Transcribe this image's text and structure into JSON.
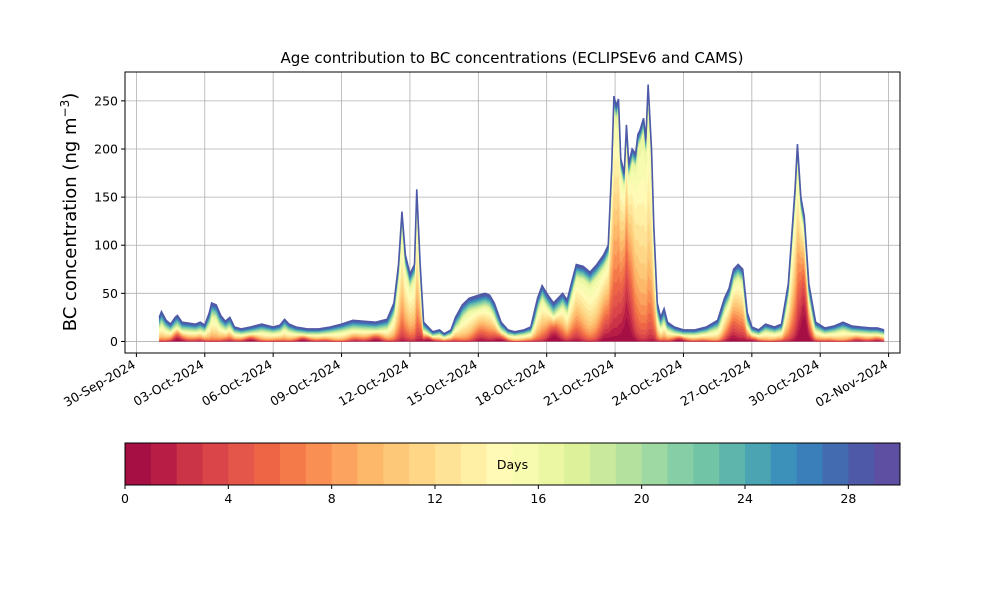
{
  "chart_data": {
    "type": "area",
    "title": "Age contribution to BC concentrations (ECLIPSEv6 and CAMS)",
    "ylabel_main": "BC concentration (ng m",
    "ylabel_unit_exp": "−3",
    "ylabel_close": ")",
    "xlabel": "",
    "ylim": [
      -12,
      280
    ],
    "yticks": [
      0,
      50,
      100,
      150,
      200,
      250
    ],
    "xlim": [
      -0.5,
      33.5
    ],
    "x_start": "30-Sep-2024",
    "xticks": [
      {
        "x": 0,
        "label": "30-Sep-2024"
      },
      {
        "x": 3,
        "label": "03-Oct-2024"
      },
      {
        "x": 6,
        "label": "06-Oct-2024"
      },
      {
        "x": 9,
        "label": "09-Oct-2024"
      },
      {
        "x": 12,
        "label": "12-Oct-2024"
      },
      {
        "x": 15,
        "label": "15-Oct-2024"
      },
      {
        "x": 18,
        "label": "18-Oct-2024"
      },
      {
        "x": 21,
        "label": "21-Oct-2024"
      },
      {
        "x": 24,
        "label": "24-Oct-2024"
      },
      {
        "x": 27,
        "label": "27-Oct-2024"
      },
      {
        "x": 30,
        "label": "30-Oct-2024"
      },
      {
        "x": 33,
        "label": "02-Nov-2024"
      }
    ],
    "grid": true,
    "total_series": [
      [
        1.0,
        25
      ],
      [
        1.1,
        31
      ],
      [
        1.3,
        22
      ],
      [
        1.5,
        18
      ],
      [
        1.7,
        25
      ],
      [
        1.8,
        27
      ],
      [
        2.0,
        20
      ],
      [
        2.3,
        19
      ],
      [
        2.6,
        18
      ],
      [
        2.8,
        20
      ],
      [
        3.0,
        17
      ],
      [
        3.2,
        30
      ],
      [
        3.3,
        40
      ],
      [
        3.5,
        38
      ],
      [
        3.7,
        27
      ],
      [
        3.9,
        21
      ],
      [
        4.1,
        25
      ],
      [
        4.3,
        15
      ],
      [
        4.6,
        13
      ],
      [
        5.0,
        15
      ],
      [
        5.5,
        18
      ],
      [
        6.0,
        15
      ],
      [
        6.3,
        17
      ],
      [
        6.5,
        23
      ],
      [
        6.7,
        18
      ],
      [
        7.0,
        15
      ],
      [
        7.5,
        13
      ],
      [
        8.0,
        13
      ],
      [
        8.5,
        15
      ],
      [
        9.0,
        18
      ],
      [
        9.5,
        22
      ],
      [
        10.0,
        21
      ],
      [
        10.5,
        20
      ],
      [
        11.0,
        23
      ],
      [
        11.3,
        40
      ],
      [
        11.5,
        80
      ],
      [
        11.65,
        135
      ],
      [
        11.8,
        90
      ],
      [
        12.0,
        70
      ],
      [
        12.2,
        80
      ],
      [
        12.3,
        158
      ],
      [
        12.45,
        80
      ],
      [
        12.6,
        20
      ],
      [
        13.0,
        10
      ],
      [
        13.3,
        12
      ],
      [
        13.5,
        8
      ],
      [
        13.8,
        12
      ],
      [
        14.0,
        25
      ],
      [
        14.3,
        38
      ],
      [
        14.6,
        45
      ],
      [
        15.0,
        48
      ],
      [
        15.3,
        50
      ],
      [
        15.5,
        48
      ],
      [
        15.7,
        40
      ],
      [
        16.0,
        20
      ],
      [
        16.3,
        12
      ],
      [
        16.6,
        10
      ],
      [
        17.0,
        12
      ],
      [
        17.3,
        15
      ],
      [
        17.6,
        45
      ],
      [
        17.8,
        58
      ],
      [
        18.0,
        50
      ],
      [
        18.3,
        40
      ],
      [
        18.5,
        45
      ],
      [
        18.7,
        50
      ],
      [
        18.9,
        43
      ],
      [
        19.1,
        62
      ],
      [
        19.3,
        80
      ],
      [
        19.6,
        78
      ],
      [
        19.9,
        72
      ],
      [
        20.2,
        80
      ],
      [
        20.5,
        90
      ],
      [
        20.7,
        100
      ],
      [
        20.85,
        180
      ],
      [
        20.95,
        255
      ],
      [
        21.05,
        245
      ],
      [
        21.15,
        252
      ],
      [
        21.25,
        190
      ],
      [
        21.4,
        175
      ],
      [
        21.5,
        225
      ],
      [
        21.6,
        185
      ],
      [
        21.75,
        200
      ],
      [
        21.9,
        195
      ],
      [
        22.0,
        215
      ],
      [
        22.1,
        220
      ],
      [
        22.25,
        232
      ],
      [
        22.35,
        210
      ],
      [
        22.45,
        267
      ],
      [
        22.6,
        200
      ],
      [
        22.7,
        120
      ],
      [
        22.85,
        40
      ],
      [
        23.0,
        25
      ],
      [
        23.15,
        34
      ],
      [
        23.3,
        20
      ],
      [
        23.6,
        15
      ],
      [
        24.0,
        12
      ],
      [
        24.5,
        12
      ],
      [
        25.0,
        15
      ],
      [
        25.5,
        22
      ],
      [
        25.8,
        45
      ],
      [
        26.0,
        55
      ],
      [
        26.2,
        75
      ],
      [
        26.4,
        80
      ],
      [
        26.6,
        75
      ],
      [
        26.8,
        30
      ],
      [
        27.0,
        15
      ],
      [
        27.3,
        12
      ],
      [
        27.6,
        18
      ],
      [
        28.0,
        15
      ],
      [
        28.3,
        18
      ],
      [
        28.6,
        60
      ],
      [
        28.9,
        160
      ],
      [
        29.0,
        205
      ],
      [
        29.15,
        150
      ],
      [
        29.3,
        130
      ],
      [
        29.5,
        60
      ],
      [
        29.8,
        20
      ],
      [
        30.2,
        14
      ],
      [
        30.6,
        16
      ],
      [
        31.0,
        20
      ],
      [
        31.4,
        16
      ],
      [
        31.8,
        15
      ],
      [
        32.2,
        14
      ],
      [
        32.5,
        14
      ],
      [
        32.8,
        12
      ]
    ],
    "colorbar": {
      "label": "Days",
      "range": [
        0,
        30
      ],
      "ticks": [
        0,
        4,
        8,
        12,
        16,
        20,
        24,
        28
      ],
      "colors": [
        "#a50f44",
        "#b81d45",
        "#cb3447",
        "#d94549",
        "#e4564a",
        "#ee6546",
        "#f57a49",
        "#f98f53",
        "#fca45f",
        "#fdb86a",
        "#fdc877",
        "#fed686",
        "#fee396",
        "#fff0a6",
        "#fffbb7",
        "#f7fbb0",
        "#ebf7a3",
        "#dcf199",
        "#c9e99c",
        "#b5e19e",
        "#9ed8a3",
        "#86cea5",
        "#72c4a6",
        "#5eb5ab",
        "#4aa4b2",
        "#3b91b9",
        "#3a7fb9",
        "#426bb0",
        "#4e5aa8",
        "#5e4fa2"
      ]
    }
  }
}
